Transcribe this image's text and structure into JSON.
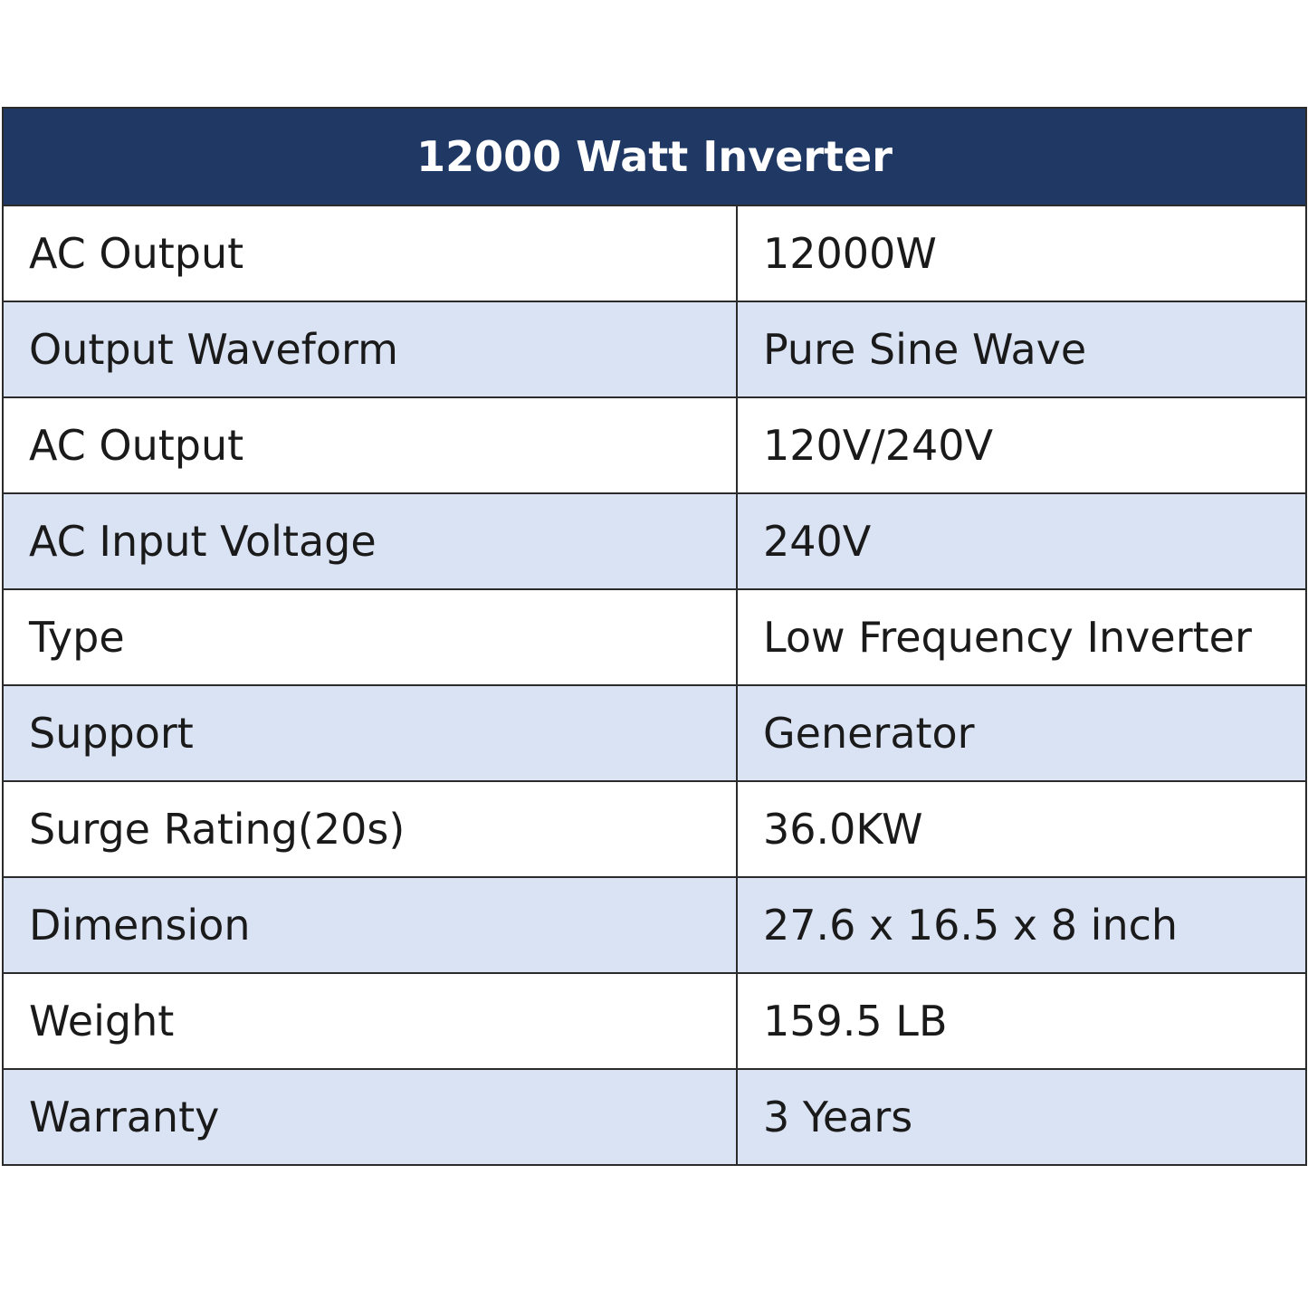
{
  "table": {
    "title": "12000 Watt Inverter",
    "rows": [
      {
        "label": "AC Output",
        "value": "12000W"
      },
      {
        "label": "Output Waveform",
        "value": "Pure Sine Wave"
      },
      {
        "label": "AC Output",
        "value": "120V/240V"
      },
      {
        "label": "AC Input Voltage",
        "value": "240V"
      },
      {
        "label": "Type",
        "value": "Low Frequency Inverter"
      },
      {
        "label": "Support",
        "value": "Generator"
      },
      {
        "label": "Surge Rating(20s)",
        "value": "36.0KW"
      },
      {
        "label": "Dimension",
        "value": "27.6 x 16.5 x 8 inch"
      },
      {
        "label": "Weight",
        "value": "159.5 LB"
      },
      {
        "label": "Warranty",
        "value": "3 Years"
      }
    ]
  },
  "colors": {
    "header_bg": "#1f3864",
    "header_text": "#ffffff",
    "alt_row_bg": "#dae3f3",
    "row_bg": "#ffffff",
    "border": "#2b2b2b"
  }
}
